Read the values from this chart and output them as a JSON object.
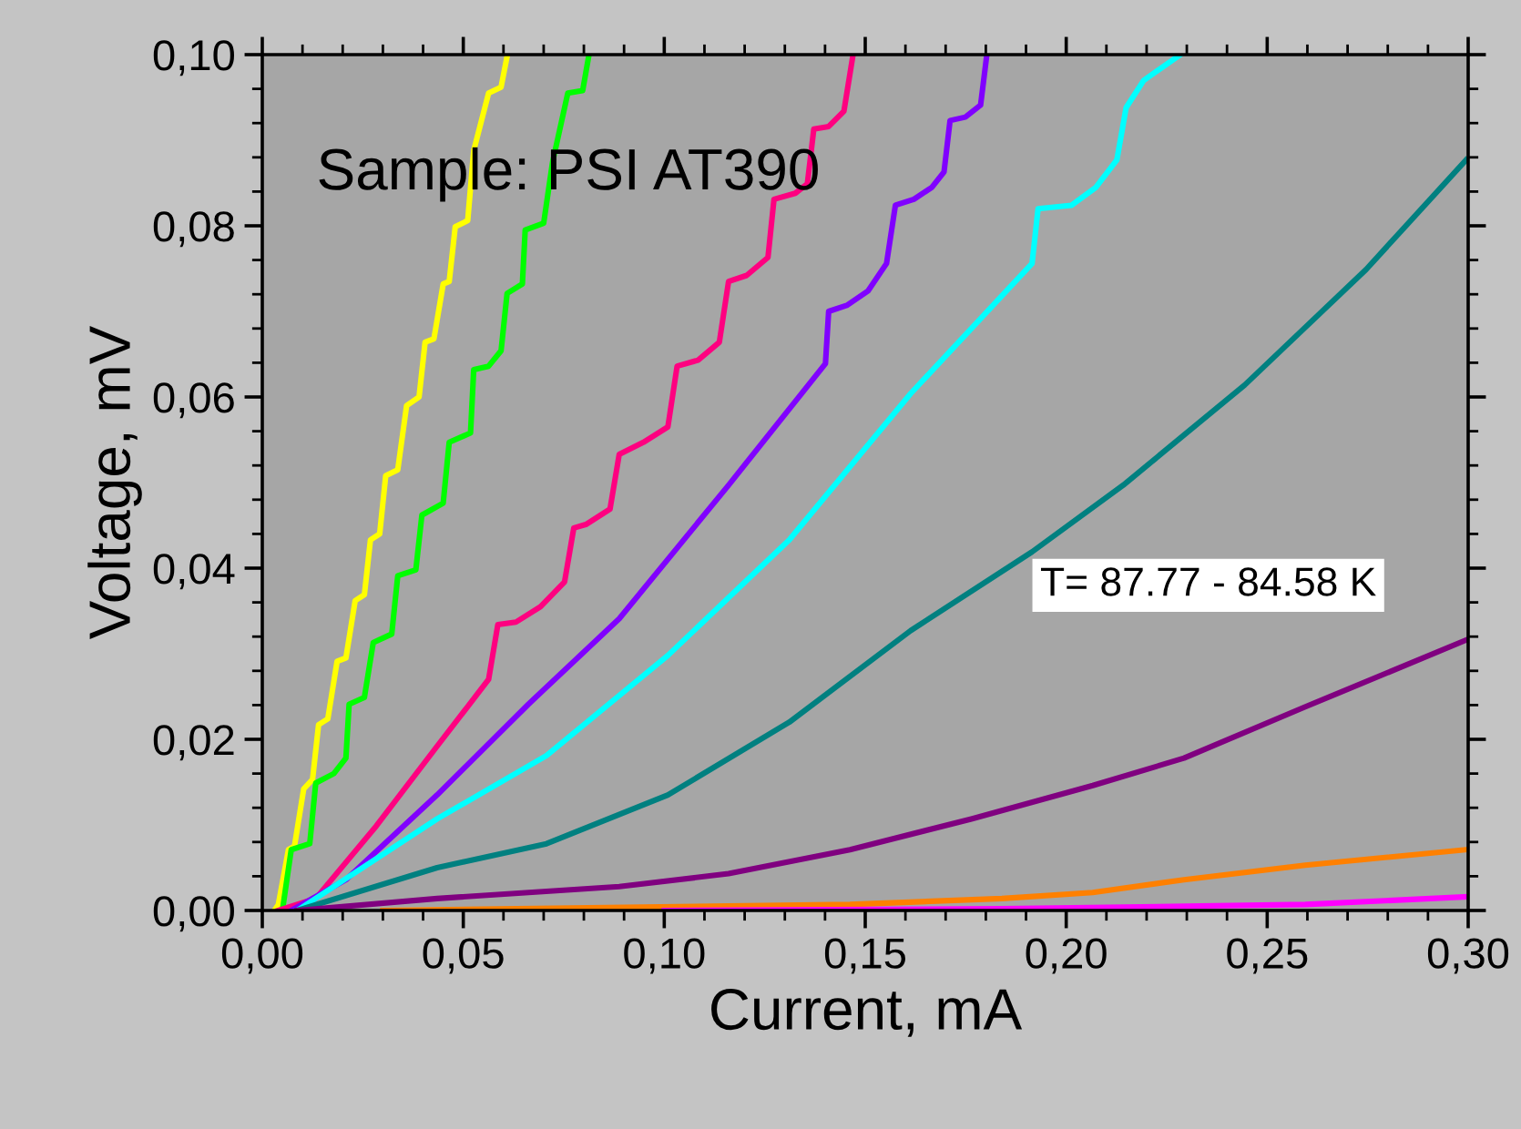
{
  "chart_data": {
    "type": "line",
    "xlabel": "Current, mA",
    "ylabel": "Voltage, mV",
    "annotations": [
      "Sample: PSI AT390",
      "T= 87.77 - 84.58 K"
    ],
    "xlim": [
      0,
      0.3
    ],
    "ylim": [
      0,
      0.1
    ],
    "xticks": [
      {
        "value": 0,
        "label": "0,00"
      },
      {
        "value": 0.05,
        "label": "0,05"
      },
      {
        "value": 0.1,
        "label": "0,10"
      },
      {
        "value": 0.15,
        "label": "0,15"
      },
      {
        "value": 0.2,
        "label": "0,20"
      },
      {
        "value": 0.25,
        "label": "0,25"
      },
      {
        "value": 0.3,
        "label": "0,30"
      }
    ],
    "yticks": [
      {
        "value": 0,
        "label": "0,00"
      },
      {
        "value": 0.02,
        "label": "0,02"
      },
      {
        "value": 0.04,
        "label": "0,04"
      },
      {
        "value": 0.06,
        "label": "0,06"
      },
      {
        "value": 0.08,
        "label": "0,08"
      },
      {
        "value": 0.1,
        "label": "0,10"
      }
    ],
    "grid": false,
    "legend": false,
    "marker": "none",
    "line_style": "solid",
    "series": [
      {
        "color": "#ffff00",
        "x": [
          0.003,
          0.004,
          0.0065,
          0.008,
          0.0103,
          0.0125,
          0.014,
          0.0163,
          0.0186,
          0.0208,
          0.0231,
          0.0254,
          0.0269,
          0.0292,
          0.0307,
          0.0337,
          0.0359,
          0.039,
          0.0405,
          0.0427,
          0.045,
          0.0465,
          0.048,
          0.0511,
          0.0526,
          0.0563,
          0.0594,
          0.0609
        ],
        "values": [
          0,
          0.0007,
          0.0071,
          0.0075,
          0.0142,
          0.0153,
          0.0217,
          0.0224,
          0.0291,
          0.0295,
          0.0362,
          0.0369,
          0.0433,
          0.044,
          0.0508,
          0.0515,
          0.059,
          0.06,
          0.0664,
          0.0668,
          0.0732,
          0.0735,
          0.0799,
          0.0806,
          0.0888,
          0.0955,
          0.0962,
          0.0998
        ]
      },
      {
        "color": "#00ff00",
        "x": [
          0.005,
          0.0072,
          0.0118,
          0.0133,
          0.0178,
          0.0208,
          0.0216,
          0.0254,
          0.0276,
          0.0322,
          0.0337,
          0.0382,
          0.0397,
          0.045,
          0.0465,
          0.0518,
          0.0526,
          0.0563,
          0.0594,
          0.0609,
          0.0647,
          0.0654,
          0.07,
          0.0722,
          0.076,
          0.0797,
          0.0812
        ],
        "values": [
          0,
          0.0071,
          0.0078,
          0.0149,
          0.016,
          0.0178,
          0.0241,
          0.0249,
          0.0313,
          0.0323,
          0.0391,
          0.0398,
          0.0462,
          0.0476,
          0.0547,
          0.0558,
          0.0632,
          0.0636,
          0.0654,
          0.0721,
          0.0732,
          0.0795,
          0.0803,
          0.0874,
          0.0955,
          0.0958,
          0.0998
        ]
      },
      {
        "color": "#ff0080",
        "x": [
          0.004,
          0.0133,
          0.0284,
          0.0435,
          0.0563,
          0.0586,
          0.0631,
          0.0692,
          0.0752,
          0.0775,
          0.0805,
          0.0865,
          0.0888,
          0.0948,
          0.1009,
          0.1032,
          0.1084,
          0.1137,
          0.116,
          0.1205,
          0.1258,
          0.1273,
          0.1326,
          0.1356,
          0.1372,
          0.1409,
          0.1447,
          0.1469
        ],
        "values": [
          0,
          0.0014,
          0.0099,
          0.0192,
          0.027,
          0.0334,
          0.0337,
          0.0355,
          0.0384,
          0.0447,
          0.0451,
          0.0469,
          0.0533,
          0.0547,
          0.0565,
          0.0636,
          0.0643,
          0.0664,
          0.0735,
          0.0742,
          0.0763,
          0.0831,
          0.0838,
          0.0849,
          0.0913,
          0.0916,
          0.0934,
          0.0998
        ]
      },
      {
        "color": "#8000ff",
        "x": [
          0.0072,
          0.0208,
          0.0435,
          0.0662,
          0.0888,
          0.116,
          0.1401,
          0.1409,
          0.1454,
          0.1507,
          0.1553,
          0.1575,
          0.1621,
          0.1666,
          0.1696,
          0.1711,
          0.1749,
          0.1787,
          0.1802
        ],
        "values": [
          0,
          0.0036,
          0.0135,
          0.0241,
          0.0341,
          0.0497,
          0.0639,
          0.07,
          0.0707,
          0.0724,
          0.0756,
          0.0824,
          0.0831,
          0.0845,
          0.0863,
          0.0923,
          0.0927,
          0.0941,
          0.0998
        ]
      },
      {
        "color": "#00ffff",
        "x": [
          0.0087,
          0.0435,
          0.0707,
          0.1009,
          0.1311,
          0.1613,
          0.1915,
          0.193,
          0.2013,
          0.2074,
          0.2126,
          0.2149,
          0.2193,
          0.2284
        ],
        "values": [
          0,
          0.0107,
          0.0181,
          0.0298,
          0.0433,
          0.0604,
          0.0756,
          0.082,
          0.0824,
          0.0845,
          0.0877,
          0.0938,
          0.097,
          0.1
        ]
      },
      {
        "color": "#008080",
        "x": [
          0.0087,
          0.0435,
          0.0707,
          0.1009,
          0.1311,
          0.1613,
          0.1915,
          0.2142,
          0.2444,
          0.2746,
          0.2995
        ],
        "values": [
          0,
          0.005,
          0.0078,
          0.0135,
          0.022,
          0.0327,
          0.0419,
          0.0497,
          0.0614,
          0.0749,
          0.0877
        ]
      },
      {
        "color": "#800080",
        "x": [
          0.0087,
          0.0435,
          0.0888,
          0.116,
          0.1462,
          0.1764,
          0.2066,
          0.2293,
          0.2595,
          0.2995
        ],
        "values": [
          0,
          0.0014,
          0.0028,
          0.0043,
          0.0071,
          0.0107,
          0.0146,
          0.0178,
          0.0238,
          0.0316
        ]
      },
      {
        "color": "#ff8000",
        "x": [
          0.03,
          0.1462,
          0.184,
          0.2066,
          0.2293,
          0.2595,
          0.2995
        ],
        "values": [
          0,
          0.0007,
          0.0014,
          0.0021,
          0.0036,
          0.0053,
          0.0071
        ]
      },
      {
        "color": "#ff00ff",
        "x": [
          0.1,
          0.184,
          0.2595,
          0.2995
        ],
        "values": [
          0,
          0.0002,
          0.0007,
          0.0016
        ]
      }
    ]
  }
}
